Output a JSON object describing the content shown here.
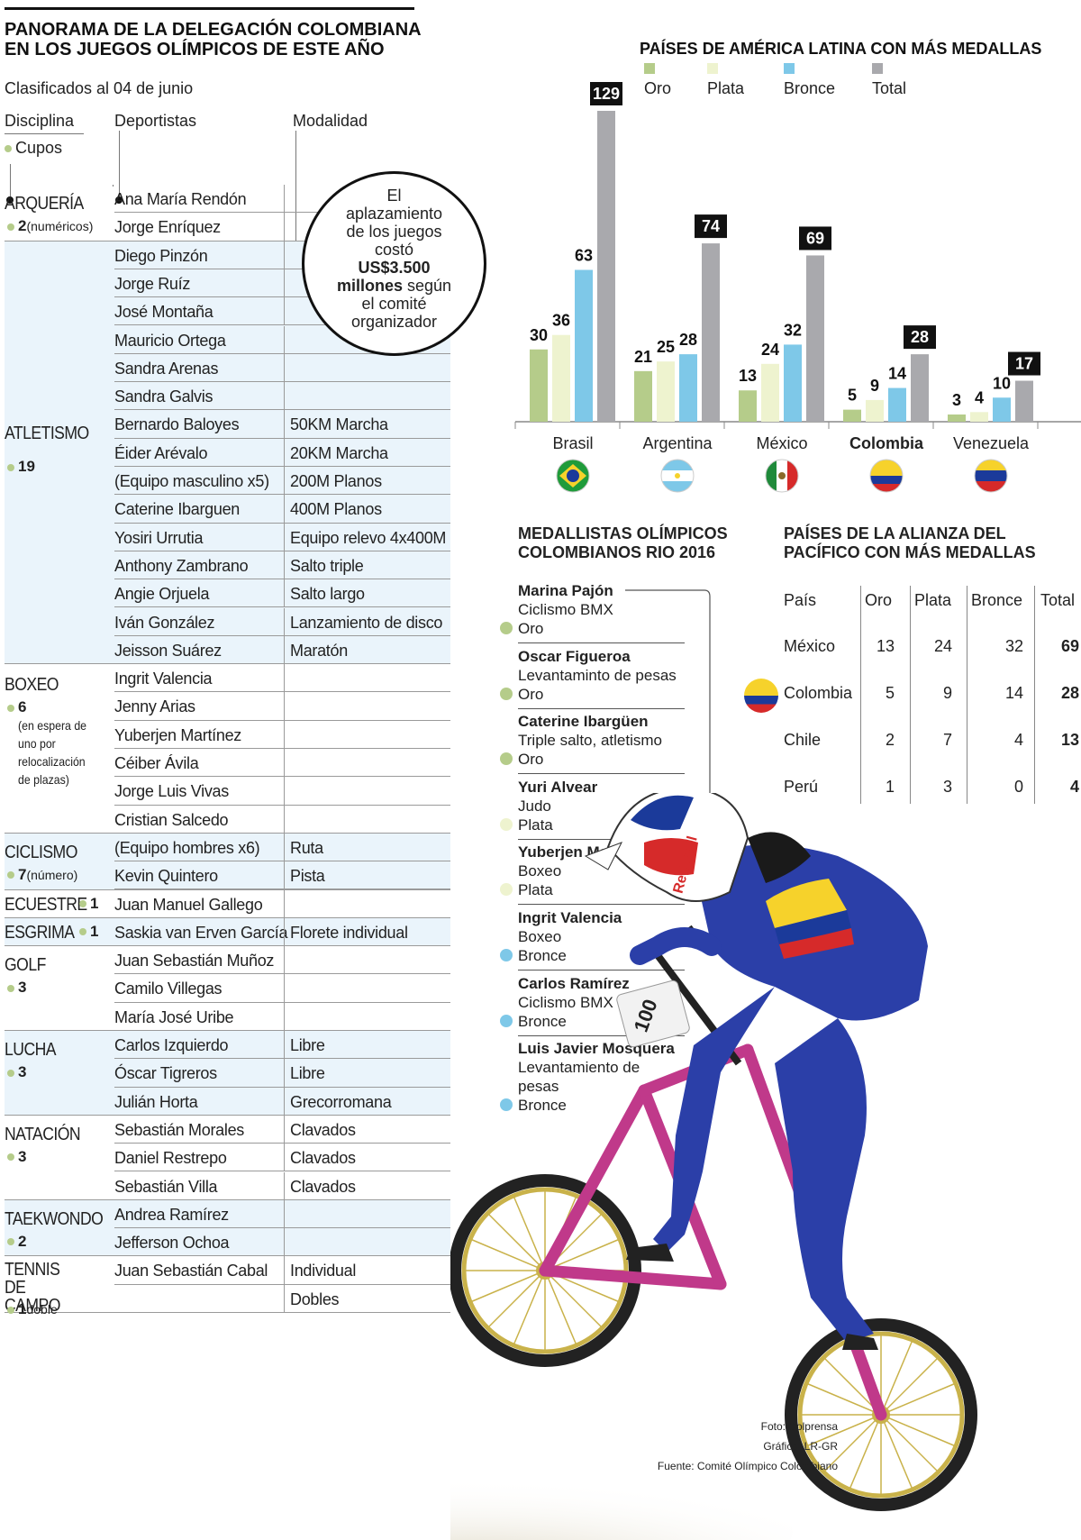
{
  "title": "PANORAMA DE LA DELEGACIÓN COLOMBIANA EN LOS JUEGOS OLÍMPICOS DE ESTE AÑO",
  "subtitle": "Clasificados al 04 de junio",
  "table_headers": {
    "disciplina": "Disciplina",
    "deportistas": "Deportistas",
    "modalidad": "Modalidad",
    "cupos": "Cupos"
  },
  "disciplines": [
    {
      "name": "ARQUERÍA",
      "cupos": "2",
      "note": "(numéricos)",
      "athletes": [
        {
          "name": "Ana María Rendón",
          "mod": ""
        },
        {
          "name": "Jorge Enríquez",
          "mod": ""
        }
      ]
    },
    {
      "name": "ATLETISMO",
      "cupos": "19",
      "note": "",
      "athletes": [
        {
          "name": "Diego Pinzón",
          "mod": ""
        },
        {
          "name": "Jorge Ruíz",
          "mod": ""
        },
        {
          "name": "José Montaña",
          "mod": ""
        },
        {
          "name": "Mauricio Ortega",
          "mod": ""
        },
        {
          "name": "Sandra Arenas",
          "mod": ""
        },
        {
          "name": "Sandra Galvis",
          "mod": ""
        },
        {
          "name": "Bernardo Baloyes",
          "mod": "50KM Marcha"
        },
        {
          "name": "Éider Arévalo",
          "mod": "20KM Marcha"
        },
        {
          "name": "(Equipo masculino x5)",
          "mod": "200M Planos"
        },
        {
          "name": "Caterine Ibarguen",
          "mod": "400M Planos"
        },
        {
          "name": "Yosiri Urrutia",
          "mod": "Equipo relevo 4x400M"
        },
        {
          "name": "Anthony Zambrano",
          "mod": "Salto triple"
        },
        {
          "name": "Angie Orjuela",
          "mod": "Salto largo"
        },
        {
          "name": "Iván González",
          "mod": "Lanzamiento de disco"
        },
        {
          "name": "Jeisson Suárez",
          "mod": "Maratón"
        }
      ]
    },
    {
      "name": "BOXEO",
      "cupos": "6",
      "note": "(en espera de uno por relocalización de plazas)",
      "athletes": [
        {
          "name": "Ingrit Valencia",
          "mod": ""
        },
        {
          "name": "Jenny Arias",
          "mod": ""
        },
        {
          "name": "Yuberjen Martínez",
          "mod": ""
        },
        {
          "name": "Céiber Ávila",
          "mod": ""
        },
        {
          "name": "Jorge Luis Vivas",
          "mod": ""
        },
        {
          "name": "Cristian Salcedo",
          "mod": ""
        }
      ]
    },
    {
      "name": "CICLISMO",
      "cupos": "7",
      "note": "(número)",
      "athletes": [
        {
          "name": "(Equipo hombres x6)",
          "mod": "Ruta"
        },
        {
          "name": "Kevin Quintero",
          "mod": "Pista"
        }
      ]
    },
    {
      "name": "ECUESTRE",
      "cupos": "1",
      "note": "",
      "athletes": [
        {
          "name": "Juan Manuel Gallego",
          "mod": ""
        }
      ]
    },
    {
      "name": "ESGRIMA",
      "cupos": "1",
      "note": "",
      "athletes": [
        {
          "name": "Saskia van Erven García",
          "mod": "Florete individual"
        }
      ]
    },
    {
      "name": "GOLF",
      "cupos": "3",
      "note": "",
      "athletes": [
        {
          "name": "Juan Sebastián Muñoz",
          "mod": ""
        },
        {
          "name": "Camilo Villegas",
          "mod": ""
        },
        {
          "name": "María José Uribe",
          "mod": ""
        }
      ]
    },
    {
      "name": "LUCHA",
      "cupos": "3",
      "note": "",
      "athletes": [
        {
          "name": "Carlos Izquierdo",
          "mod": "Libre"
        },
        {
          "name": "Óscar Tigreros",
          "mod": "Libre"
        },
        {
          "name": "Julián Horta",
          "mod": "Grecorromana"
        }
      ]
    },
    {
      "name": "NATACIÓN",
      "cupos": "3",
      "note": "",
      "athletes": [
        {
          "name": "Sebastián Morales",
          "mod": "Clavados"
        },
        {
          "name": "Daniel Restrepo",
          "mod": "Clavados"
        },
        {
          "name": "Sebastián Villa",
          "mod": "Clavados"
        }
      ]
    },
    {
      "name": "TAEKWONDO",
      "cupos": "2",
      "note": "",
      "athletes": [
        {
          "name": "Andrea Ramírez",
          "mod": ""
        },
        {
          "name": "Jefferson Ochoa",
          "mod": ""
        }
      ]
    },
    {
      "name": "TENNIS DE CAMPO",
      "cupos": "1",
      "note": "doble",
      "athletes": [
        {
          "name": "Juan Sebastián Cabal",
          "mod": "Individual"
        },
        {
          "name": "",
          "mod": "Dobles"
        }
      ]
    }
  ],
  "callout": {
    "l1": "El",
    "l2": "aplazamiento",
    "l3": "de los juegos",
    "l4": "costó",
    "l5": "US$3.500",
    "l6": "millones",
    "l6b": " según",
    "l7": "el comité",
    "l8": "organizador"
  },
  "chart_data": {
    "type": "bar",
    "title": "PAÍSES DE AMÉRICA LATINA CON MÁS MEDALLAS",
    "categories": [
      "Brasil",
      "Argentina",
      "México",
      "Colombia",
      "Venezuela"
    ],
    "series": [
      {
        "name": "Oro",
        "values": [
          30,
          21,
          13,
          5,
          3
        ],
        "color": "#b5cc8a"
      },
      {
        "name": "Plata",
        "values": [
          36,
          25,
          24,
          9,
          4
        ],
        "color": "#eef3cf"
      },
      {
        "name": "Bronce",
        "values": [
          63,
          28,
          32,
          14,
          10
        ],
        "color": "#7ec8e8"
      },
      {
        "name": "Total",
        "values": [
          129,
          74,
          69,
          28,
          17
        ],
        "color": "#a9a9ad"
      }
    ],
    "ylim": [
      0,
      129
    ],
    "highlight": "Colombia"
  },
  "medallists": {
    "title": "MEDALLISTAS OLÍMPICOS COLOMBIANOS RIO 2016",
    "items": [
      {
        "name": "Marina Pajón",
        "sport": "Ciclismo BMX",
        "medal": "Oro",
        "color": "#b5cc8a"
      },
      {
        "name": "Oscar Figueroa",
        "sport": "Levantaminto de pesas",
        "medal": "Oro",
        "color": "#b5cc8a"
      },
      {
        "name": "Caterine Ibargüen",
        "sport": "Triple salto, atletismo",
        "medal": "Oro",
        "color": "#b5cc8a"
      },
      {
        "name": "Yuri Alvear",
        "sport": "Judo",
        "medal": "Plata",
        "color": "#eef3cf"
      },
      {
        "name": "Yuberjen Martínez",
        "sport": "Boxeo",
        "medal": "Plata",
        "color": "#eef3cf"
      },
      {
        "name": "Ingrit Valencia",
        "sport": "Boxeo",
        "medal": "Bronce",
        "color": "#7ec8e8"
      },
      {
        "name": "Carlos Ramírez",
        "sport": "Ciclismo BMX",
        "medal": "Bronce",
        "color": "#7ec8e8"
      },
      {
        "name": "Luis Javier Mosquera",
        "sport": "Levantamiento de pesas",
        "medal": "Bronce",
        "color": "#7ec8e8"
      }
    ]
  },
  "pacific": {
    "title": "PAÍSES DE LA ALIANZA DEL PACÍFICO CON MÁS MEDALLAS",
    "headers": [
      "País",
      "Oro",
      "Plata",
      "Bronce",
      "Total"
    ],
    "rows": [
      {
        "pais": "México",
        "oro": "13",
        "plata": "24",
        "bronce": "32",
        "total": "69"
      },
      {
        "pais": "Colombia",
        "oro": "5",
        "plata": "9",
        "bronce": "14",
        "total": "28"
      },
      {
        "pais": "Chile",
        "oro": "2",
        "plata": "7",
        "bronce": "4",
        "total": "13"
      },
      {
        "pais": "Perú",
        "oro": "1",
        "plata": "3",
        "bronce": "0",
        "total": "4"
      }
    ]
  },
  "credits": {
    "foto": "Foto: Colprensa",
    "grafico": "Gráfico: LR-GR",
    "fuente": "Fuente: Comité Olímpico Colombiano"
  },
  "photo_text": {
    "bib": "100",
    "helmet": "Red Bull"
  }
}
